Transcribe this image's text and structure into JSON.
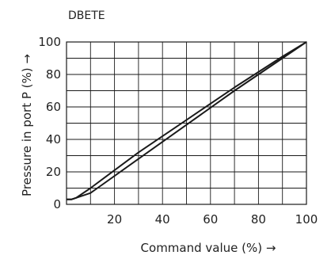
{
  "chart_data": {
    "type": "line",
    "title": "DBETE",
    "xlabel": "Command value (%) →",
    "ylabel": "Pressure in port P (%) →",
    "xlim": [
      0,
      100
    ],
    "ylim": [
      0,
      100
    ],
    "grid": true,
    "x_ticks": [
      20,
      40,
      60,
      80,
      100
    ],
    "y_ticks": [
      0,
      20,
      40,
      60,
      80,
      100
    ],
    "line_color": "#1a1a1a",
    "series": [
      {
        "x": [
          0,
          2,
          4,
          10,
          30,
          50,
          70,
          90,
          100
        ],
        "y": [
          3,
          3,
          4,
          10,
          32,
          52,
          72,
          91,
          100
        ]
      },
      {
        "x": [
          0,
          2,
          4,
          10,
          30,
          50,
          70,
          90,
          100
        ],
        "y": [
          3,
          3,
          4,
          7,
          28,
          49,
          70,
          90,
          100
        ]
      }
    ]
  }
}
